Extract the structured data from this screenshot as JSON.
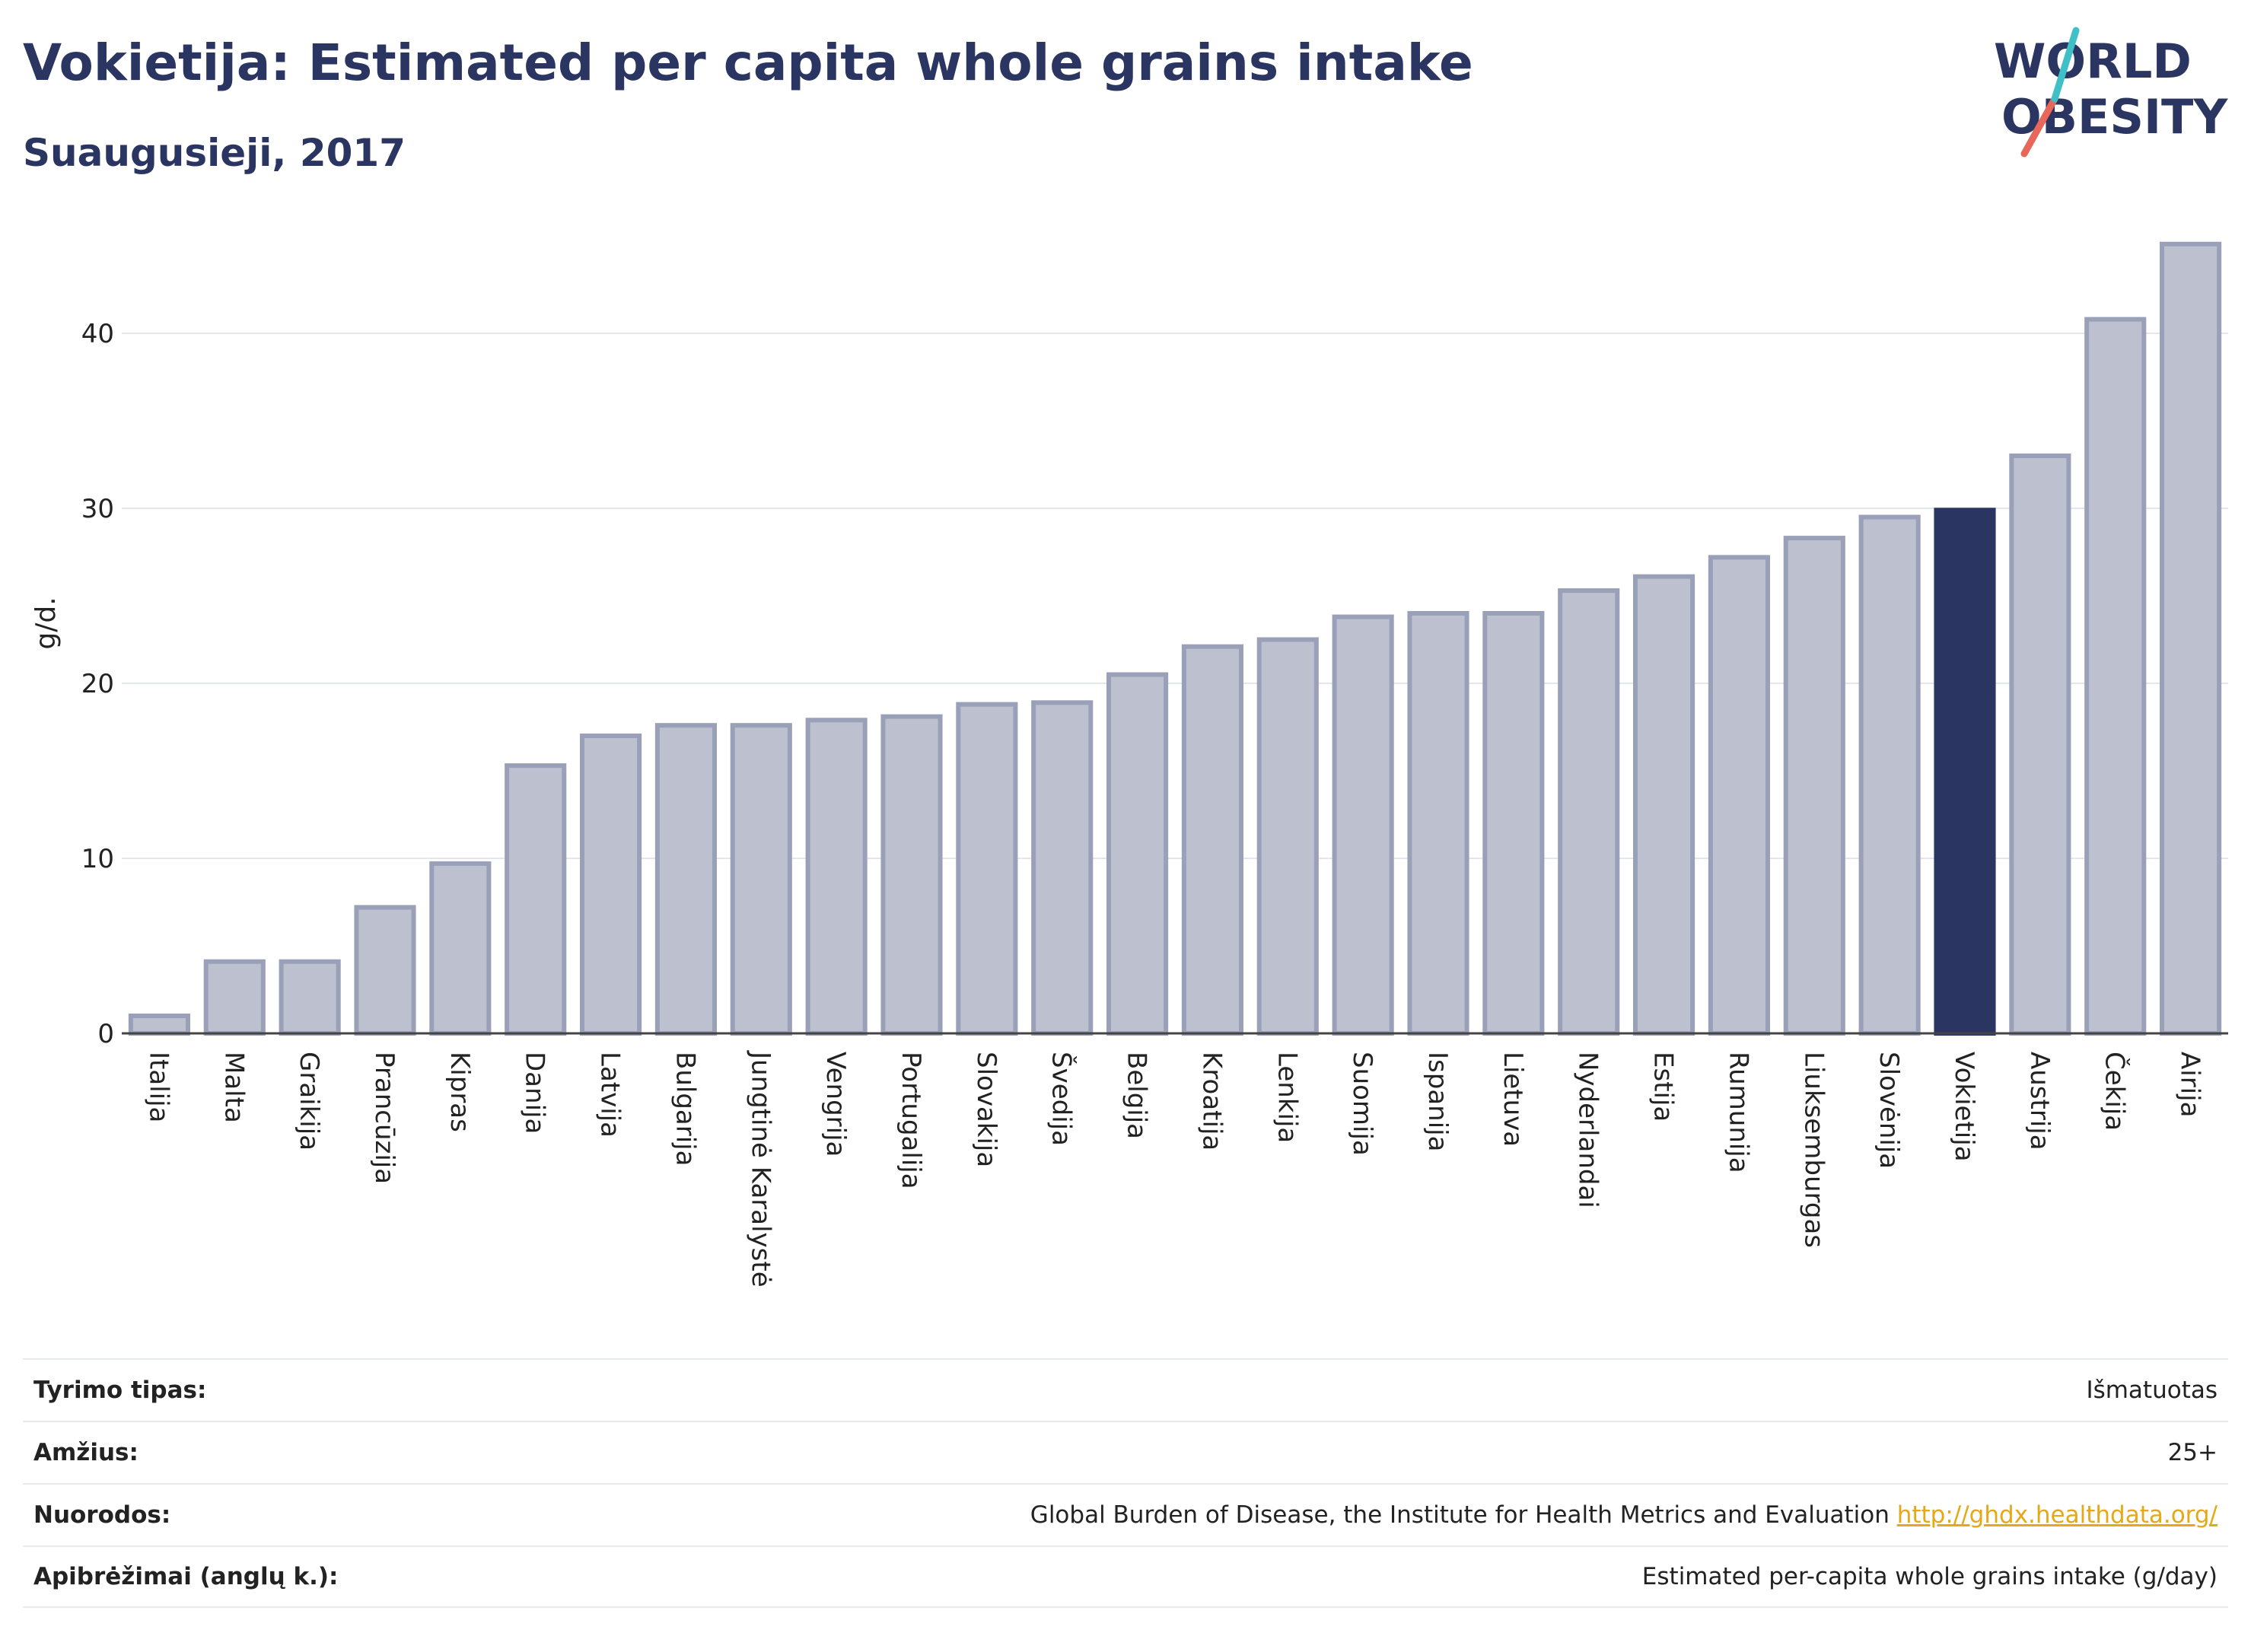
{
  "header": {
    "title": "Vokietija: Estimated per capita whole grains intake",
    "subtitle": "Suaugusieji, 2017"
  },
  "logo": {
    "line1": "WORLD",
    "line2": "OBESITY",
    "accent_colors": [
      "#e8665a",
      "#3fbfc6"
    ]
  },
  "colors": {
    "bar": "#bcc0cf",
    "bar_border": "#9aa0b8",
    "highlight": "#2b3561",
    "grid": "#e3e6ec"
  },
  "chart_data": {
    "type": "bar",
    "ylabel": "g/d.",
    "ylim": [
      0,
      46
    ],
    "yticks": [
      0,
      10,
      20,
      30,
      40
    ],
    "grid": true,
    "highlight": "Vokietija",
    "categories": [
      "Italija",
      "Malta",
      "Graikija",
      "Prancūzija",
      "Kipras",
      "Danija",
      "Latvija",
      "Bulgarija",
      "Jungtinė Karalystė",
      "Vengrija",
      "Portugalija",
      "Slovakija",
      "Švedija",
      "Belgija",
      "Kroatija",
      "Lenkija",
      "Suomija",
      "Ispanija",
      "Lietuva",
      "Nyderlandai",
      "Estija",
      "Rumunija",
      "Liuksemburgas",
      "Slovėnija",
      "Vokietija",
      "Austrija",
      "Čekija",
      "Airija"
    ],
    "values": [
      1.0,
      4.1,
      4.1,
      7.2,
      9.7,
      15.3,
      17.0,
      17.6,
      17.6,
      17.9,
      18.1,
      18.8,
      18.9,
      20.5,
      22.1,
      22.5,
      23.8,
      24.0,
      24.0,
      25.3,
      26.1,
      27.2,
      28.3,
      29.5,
      29.9,
      33.0,
      40.8,
      45.1
    ]
  },
  "info": [
    {
      "key": "Tyrimo tipas:",
      "value": "Išmatuotas"
    },
    {
      "key": "Amžius:",
      "value": "25+"
    },
    {
      "key": "Nuorodos:",
      "value": "Global Burden of Disease, the Institute for Health Metrics and Evaluation",
      "link": "http://ghdx.healthdata.org/"
    },
    {
      "key": "Apibrėžimai (anglų k.):",
      "value": "Estimated per-capita whole grains intake (g/day)"
    }
  ]
}
